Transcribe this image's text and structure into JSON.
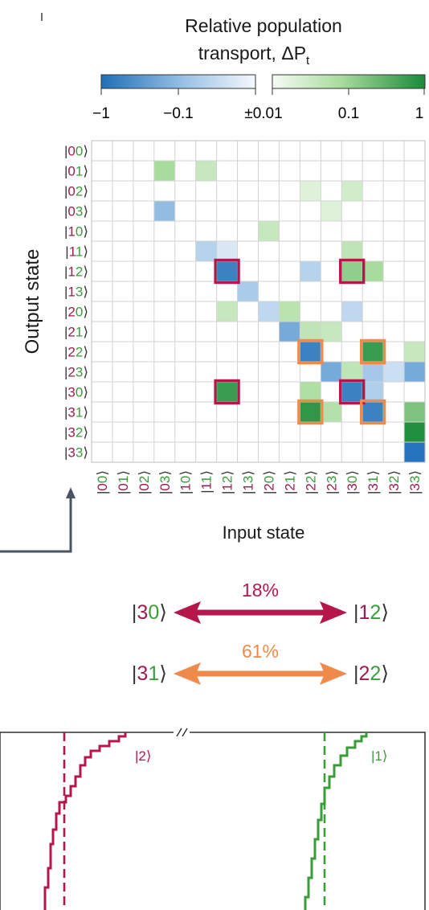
{
  "colorbar": {
    "title_line1": "Relative population",
    "title_line2": "transport, ΔP",
    "title_sub": "t",
    "ticks": [
      "−1",
      "−0.1",
      "±0.01",
      "0.1",
      "1"
    ]
  },
  "chart_data": {
    "type": "heatmap",
    "xlabel": "Input state",
    "ylabel": "Output state",
    "states": [
      "|00⟩",
      "|01⟩",
      "|02⟩",
      "|03⟩",
      "|10⟩",
      "|11⟩",
      "|12⟩",
      "|13⟩",
      "|20⟩",
      "|21⟩",
      "|22⟩",
      "|23⟩",
      "|30⟩",
      "|31⟩",
      "|32⟩",
      "|33⟩"
    ],
    "value_range": [
      -1,
      1
    ],
    "cells": [
      {
        "input": "|03⟩",
        "output": "|01⟩",
        "value": 0.1
      },
      {
        "input": "|11⟩",
        "output": "|01⟩",
        "value": 0.04
      },
      {
        "input": "|22⟩",
        "output": "|02⟩",
        "value": 0.02
      },
      {
        "input": "|30⟩",
        "output": "|02⟩",
        "value": 0.03
      },
      {
        "input": "|03⟩",
        "output": "|03⟩",
        "value": -0.12
      },
      {
        "input": "|23⟩",
        "output": "|03⟩",
        "value": 0.02
      },
      {
        "input": "|20⟩",
        "output": "|10⟩",
        "value": 0.04
      },
      {
        "input": "|11⟩",
        "output": "|11⟩",
        "value": -0.05
      },
      {
        "input": "|12⟩",
        "output": "|11⟩",
        "value": -0.02
      },
      {
        "input": "|30⟩",
        "output": "|11⟩",
        "value": 0.05
      },
      {
        "input": "|12⟩",
        "output": "|12⟩",
        "value": -0.6
      },
      {
        "input": "|22⟩",
        "output": "|12⟩",
        "value": -0.05
      },
      {
        "input": "|30⟩",
        "output": "|12⟩",
        "value": 0.15
      },
      {
        "input": "|31⟩",
        "output": "|12⟩",
        "value": 0.1
      },
      {
        "input": "|13⟩",
        "output": "|13⟩",
        "value": -0.07
      },
      {
        "input": "|12⟩",
        "output": "|20⟩",
        "value": 0.04
      },
      {
        "input": "|20⟩",
        "output": "|20⟩",
        "value": -0.04
      },
      {
        "input": "|21⟩",
        "output": "|20⟩",
        "value": 0.06
      },
      {
        "input": "|30⟩",
        "output": "|20⟩",
        "value": -0.04
      },
      {
        "input": "|21⟩",
        "output": "|21⟩",
        "value": -0.2
      },
      {
        "input": "|22⟩",
        "output": "|21⟩",
        "value": 0.05
      },
      {
        "input": "|23⟩",
        "output": "|21⟩",
        "value": 0.04
      },
      {
        "input": "|22⟩",
        "output": "|22⟩",
        "value": -0.6
      },
      {
        "input": "|31⟩",
        "output": "|22⟩",
        "value": 0.6
      },
      {
        "input": "|33⟩",
        "output": "|22⟩",
        "value": 0.04
      },
      {
        "input": "|23⟩",
        "output": "|23⟩",
        "value": -0.2
      },
      {
        "input": "|30⟩",
        "output": "|23⟩",
        "value": 0.05
      },
      {
        "input": "|31⟩",
        "output": "|23⟩",
        "value": -0.08
      },
      {
        "input": "|32⟩",
        "output": "|23⟩",
        "value": -0.03
      },
      {
        "input": "|33⟩",
        "output": "|23⟩",
        "value": -0.2
      },
      {
        "input": "|12⟩",
        "output": "|30⟩",
        "value": 0.6
      },
      {
        "input": "|22⟩",
        "output": "|30⟩",
        "value": 0.08
      },
      {
        "input": "|30⟩",
        "output": "|30⟩",
        "value": -0.6
      },
      {
        "input": "|31⟩",
        "output": "|30⟩",
        "value": -0.06
      },
      {
        "input": "|22⟩",
        "output": "|31⟩",
        "value": 0.7
      },
      {
        "input": "|23⟩",
        "output": "|31⟩",
        "value": 0.07
      },
      {
        "input": "|31⟩",
        "output": "|31⟩",
        "value": -0.6
      },
      {
        "input": "|33⟩",
        "output": "|31⟩",
        "value": 0.2
      },
      {
        "input": "|33⟩",
        "output": "|32⟩",
        "value": 0.9
      },
      {
        "input": "|33⟩",
        "output": "|33⟩",
        "value": -0.9
      }
    ],
    "highlighted_cells": [
      {
        "input": "|12⟩",
        "output": "|12⟩",
        "group": "crimson"
      },
      {
        "input": "|30⟩",
        "output": "|12⟩",
        "group": "crimson"
      },
      {
        "input": "|12⟩",
        "output": "|30⟩",
        "group": "crimson"
      },
      {
        "input": "|30⟩",
        "output": "|30⟩",
        "group": "crimson"
      },
      {
        "input": "|22⟩",
        "output": "|22⟩",
        "group": "orange"
      },
      {
        "input": "|31⟩",
        "output": "|22⟩",
        "group": "orange"
      },
      {
        "input": "|22⟩",
        "output": "|31⟩",
        "group": "orange"
      },
      {
        "input": "|31⟩",
        "output": "|31⟩",
        "group": "orange"
      }
    ]
  },
  "transfers": [
    {
      "left": "|30⟩",
      "right": "|12⟩",
      "percent": "18%",
      "color": "#b5174b"
    },
    {
      "left": "|31⟩",
      "right": "|22⟩",
      "percent": "61%",
      "color": "#f08a4b"
    }
  ],
  "bottom_panel": {
    "labels": [
      "|2⟩",
      "|1⟩"
    ]
  },
  "colors": {
    "first_digit": "#9b1d4f",
    "second_digit": "#3a9d3a",
    "negative_max": "#1f6fb8",
    "positive_max": "#1a8a3a",
    "crimson": "#b5174b",
    "orange": "#f08a4b",
    "axis_gray": "#4a5560"
  }
}
